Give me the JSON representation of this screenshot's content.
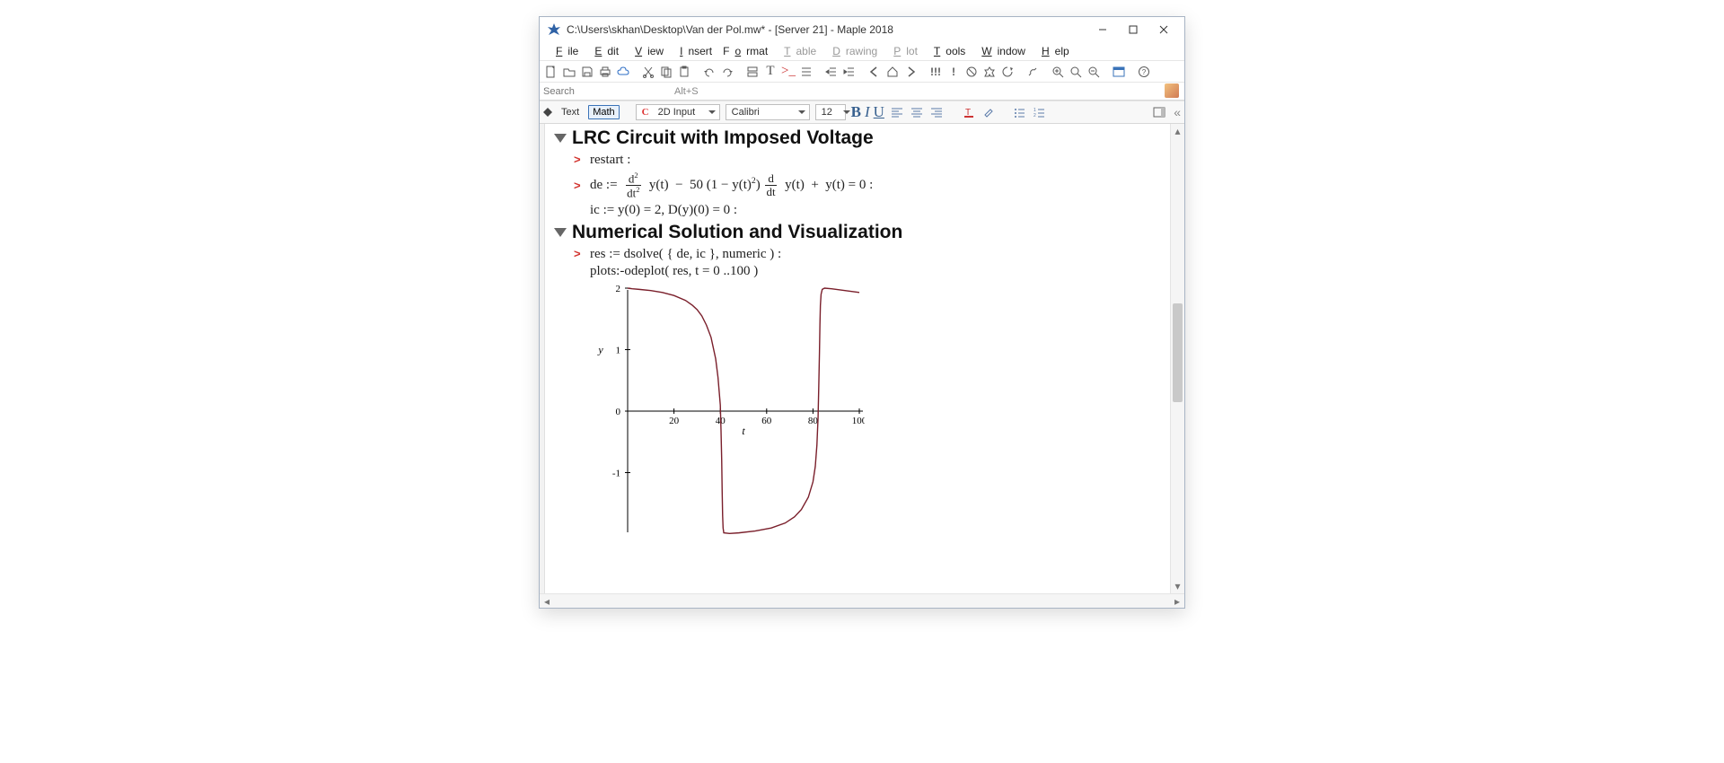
{
  "window": {
    "title": "C:\\Users\\skhan\\Desktop\\Van der Pol.mw* - [Server 21] - Maple 2018"
  },
  "menu": [
    "File",
    "Edit",
    "View",
    "Insert",
    "Format",
    "Table",
    "Drawing",
    "Plot",
    "Tools",
    "Window",
    "Help"
  ],
  "menu_disabled": [
    "Table",
    "Drawing",
    "Plot"
  ],
  "search": {
    "placeholder": "Search",
    "shortcut": "Alt+S"
  },
  "stylebar": {
    "text_label": "Text",
    "math_label": "Math",
    "style_value": "2D Input",
    "font_value": "Calibri",
    "size_value": "12"
  },
  "doc": {
    "section1_title": "LRC Circuit with Imposed Voltage",
    "restart": "restart :",
    "de_label": "de",
    "de_coeff": "50",
    "ic_line": "ic  :=  y(0) = 2, D(y)(0) = 0 :",
    "section2_title": "Numerical Solution and Visualization",
    "res_line": "res  :=  dsolve( { de, ic }, numeric ) :",
    "plotcall": "plots:-odeplot( res, t = 0 ..100 )"
  },
  "plot": {
    "type": "line",
    "line_color": "#7a1f2b",
    "axis_color": "#000000",
    "tick_color": "#000000",
    "label_color": "#000000",
    "background_color": "#ffffff",
    "xlim": [
      0,
      100
    ],
    "ylim": [
      -2,
      2
    ],
    "xticks": [
      20,
      40,
      60,
      80,
      100
    ],
    "yticks": [
      -1,
      0,
      1,
      2
    ],
    "xlabel": "t",
    "ylabel": "y",
    "tick_fontsize": 11,
    "label_fontsize": 12,
    "label_fontstyle": "italic",
    "line_width": 1.4,
    "points": [
      [
        0,
        2.0
      ],
      [
        2,
        1.99
      ],
      [
        5,
        1.98
      ],
      [
        10,
        1.96
      ],
      [
        15,
        1.93
      ],
      [
        20,
        1.88
      ],
      [
        25,
        1.8
      ],
      [
        28,
        1.72
      ],
      [
        30,
        1.65
      ],
      [
        32,
        1.55
      ],
      [
        34,
        1.4
      ],
      [
        36,
        1.2
      ],
      [
        38,
        0.85
      ],
      [
        39,
        0.55
      ],
      [
        40,
        0.1
      ],
      [
        40.3,
        -0.3
      ],
      [
        40.6,
        -0.8
      ],
      [
        40.8,
        -1.3
      ],
      [
        41.0,
        -1.7
      ],
      [
        41.2,
        -1.9
      ],
      [
        41.5,
        -1.98
      ],
      [
        44,
        -1.99
      ],
      [
        48,
        -1.98
      ],
      [
        55,
        -1.95
      ],
      [
        62,
        -1.9
      ],
      [
        68,
        -1.82
      ],
      [
        72,
        -1.72
      ],
      [
        75,
        -1.6
      ],
      [
        78,
        -1.4
      ],
      [
        80,
        -1.15
      ],
      [
        81,
        -0.9
      ],
      [
        81.7,
        -0.55
      ],
      [
        82.2,
        -0.1
      ],
      [
        82.5,
        0.4
      ],
      [
        82.8,
        0.95
      ],
      [
        83.0,
        1.4
      ],
      [
        83.2,
        1.72
      ],
      [
        83.5,
        1.9
      ],
      [
        84,
        1.98
      ],
      [
        85,
        2.0
      ],
      [
        88,
        1.99
      ],
      [
        92,
        1.97
      ],
      [
        96,
        1.95
      ],
      [
        100,
        1.93
      ]
    ]
  }
}
